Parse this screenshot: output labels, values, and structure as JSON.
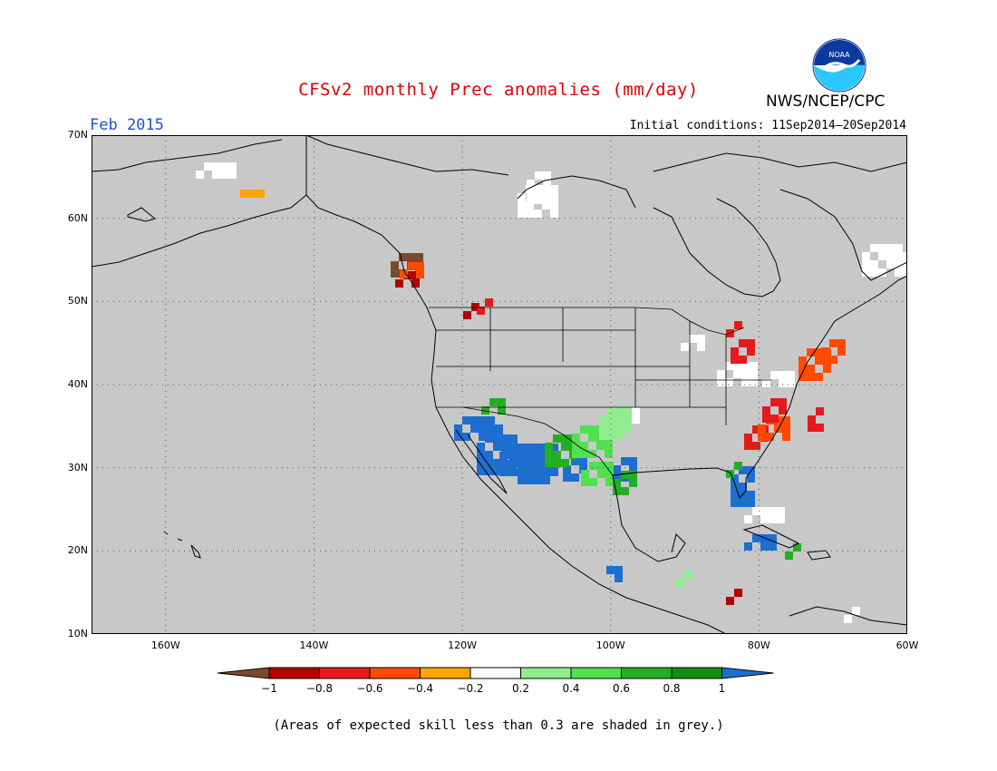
{
  "title": "CFSv2 monthly Prec anomalies (mm/day)",
  "month": "Feb 2015",
  "initial_conditions": "Initial conditions: 11Sep2014–20Sep2014",
  "agency": "NWS/NCEP/CPC",
  "logo_text": "NOAA",
  "footnote": "(Areas of expected skill less than 0.3 are shaded in grey.)",
  "map": {
    "lon_range": [
      -170,
      -60
    ],
    "lat_range": [
      10,
      70
    ],
    "lat_ticks": [
      "70N",
      "60N",
      "50N",
      "40N",
      "30N",
      "20N",
      "10N"
    ],
    "lat_values": [
      70,
      60,
      50,
      40,
      30,
      20,
      10
    ],
    "lon_ticks": [
      "160W",
      "140W",
      "120W",
      "100W",
      "80W",
      "60W"
    ],
    "lon_values": [
      -160,
      -140,
      -120,
      -100,
      -80,
      -60
    ],
    "background_color": "#c8c8c8",
    "gridlines": "dotted"
  },
  "colorbar": {
    "labels": [
      "−1",
      "−0.8",
      "−0.6",
      "−0.4",
      "−0.2",
      "0.2",
      "0.4",
      "0.6",
      "0.8",
      "1"
    ],
    "colors": [
      "#7a4a2a",
      "#b40000",
      "#e41a1c",
      "#ff4a00",
      "#ffa500",
      "#ffffff",
      "#90ee90",
      "#50e050",
      "#22b022",
      "#109010",
      "#1e6ed0"
    ]
  }
}
